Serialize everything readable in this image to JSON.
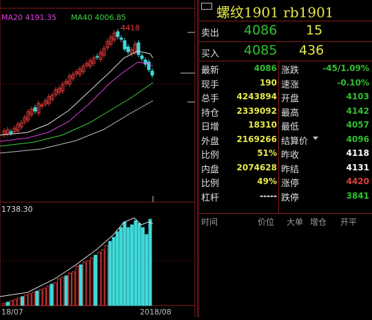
{
  "chart": {
    "ma20": "MA20 4191.35",
    "ma40": "MA40 4006.85",
    "high_label": "4418",
    "volume_max": "1738.30",
    "date_left": "18/07",
    "date_right": "2018/08",
    "colors": {
      "ma20": "#e040e0",
      "ma40": "#3cd23c",
      "up": "#e03a3a",
      "down": "#40d8d8"
    }
  },
  "panel": {
    "title_code_icon": "window-code-icon",
    "title": "螺纹1901  rb1901",
    "sell": {
      "label": "卖出",
      "price": "4086",
      "qty": "15"
    },
    "buy": {
      "label": "买入",
      "price": "4085",
      "qty": "436"
    },
    "rows": [
      {
        "l1": "最新",
        "v1": "4086",
        "c1": "green",
        "l2": "涨跌",
        "v2": "-45/1.09%",
        "c2": "green"
      },
      {
        "l1": "现手",
        "v1": "190",
        "c1": "yellow",
        "l2": "速涨",
        "v2": "-0.10%",
        "c2": "green"
      },
      {
        "l1": "总手",
        "v1": "4243894",
        "c1": "yellow",
        "l2": "开盘",
        "v2": "4103",
        "c2": "green"
      },
      {
        "l1": "持仓",
        "v1": "2339092",
        "c1": "yellow",
        "l2": "最高",
        "v2": "4142",
        "c2": "green"
      },
      {
        "l1": "日增",
        "v1": "18310",
        "c1": "yellow",
        "l2": "最低",
        "v2": "4057",
        "c2": "green"
      },
      {
        "l1": "外盘",
        "v1": "2169266",
        "c1": "yellow",
        "l2": "结算价",
        "v2": "4096",
        "c2": "green"
      },
      {
        "l1": "比例",
        "v1": "51%",
        "c1": "yellow",
        "l2": "昨收",
        "v2": "4118",
        "c2": "white"
      },
      {
        "l1": "内盘",
        "v1": "2074628",
        "c1": "yellow",
        "l2": "昨结",
        "v2": "4131",
        "c2": "white"
      },
      {
        "l1": "比例",
        "v1": "49%",
        "c1": "yellow",
        "l2": "涨停",
        "v2": "4420",
        "c2": "red"
      },
      {
        "l1": "杠杆",
        "v1": "-----",
        "c1": "white",
        "l2": "跌停",
        "v2": "3841",
        "c2": "green"
      }
    ],
    "tick_headers": [
      "时间",
      "价位",
      "大单",
      "增仓",
      "开平"
    ]
  }
}
